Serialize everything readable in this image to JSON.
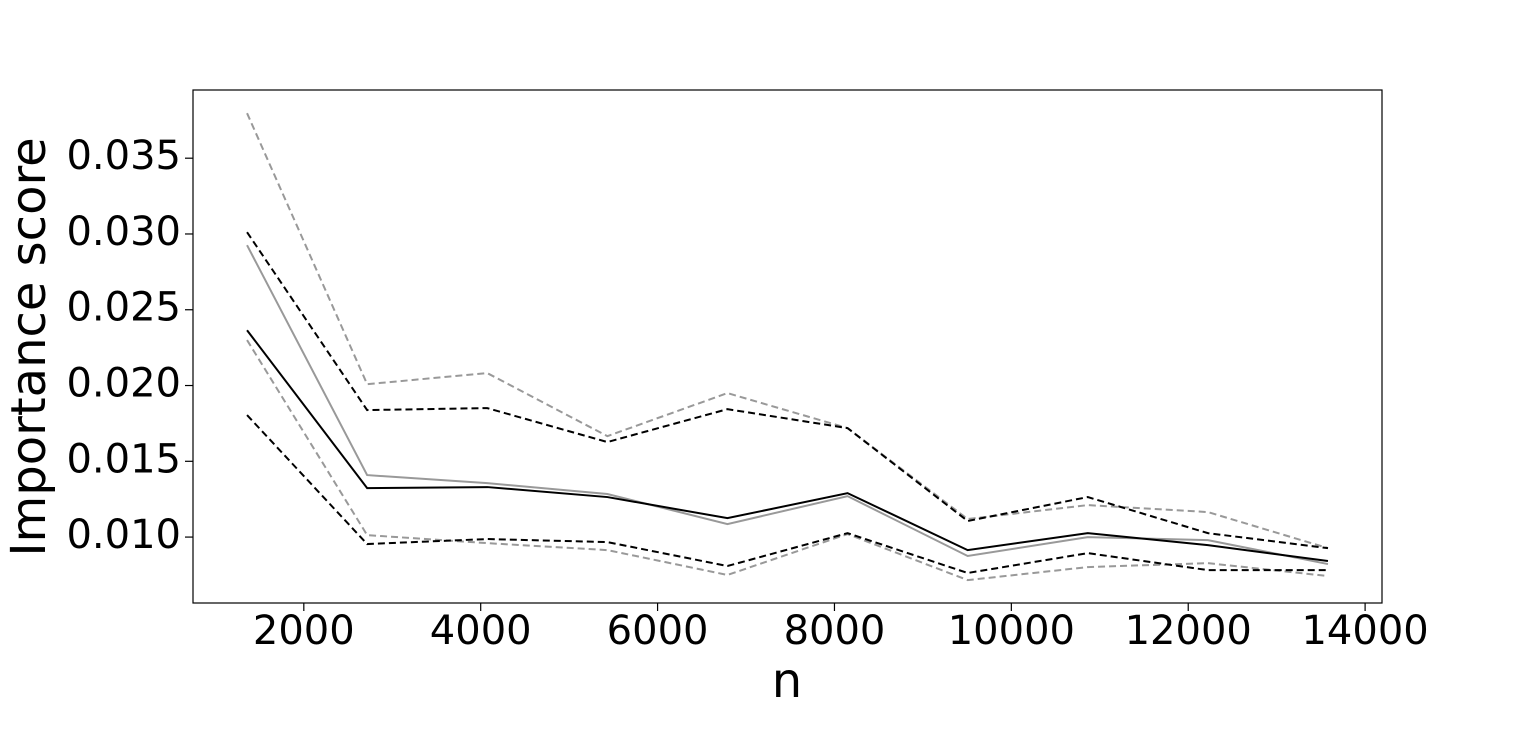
{
  "chart_data": {
    "type": "line",
    "xlabel": "n",
    "ylabel": "Importance score",
    "x": [
      1358,
      2716,
      4074,
      5432,
      6790,
      8148,
      9506,
      10864,
      12222,
      13580
    ],
    "series": [
      {
        "color": "#999999",
        "dash": "dashed",
        "values": [
          0.03797,
          0.02009,
          0.02082,
          0.01666,
          0.0195,
          0.01719,
          0.01119,
          0.01211,
          0.01165,
          0.00927
        ]
      },
      {
        "color": "#999999",
        "dash": "dashed",
        "values": [
          0.023,
          0.01013,
          0.0096,
          0.00914,
          0.0075,
          0.0102,
          0.00716,
          0.00802,
          0.00828,
          0.00743
        ]
      },
      {
        "color": "#999999",
        "dash": "solid",
        "values": [
          0.02926,
          0.01409,
          0.01356,
          0.01284,
          0.01086,
          0.0127,
          0.00875,
          0.01,
          0.0098,
          0.00822
        ]
      },
      {
        "color": "#000000",
        "dash": "dashed",
        "values": [
          0.03012,
          0.01838,
          0.01851,
          0.01627,
          0.01844,
          0.01719,
          0.01106,
          0.01264,
          0.01026,
          0.00927
        ]
      },
      {
        "color": "#000000",
        "dash": "dashed",
        "values": [
          0.01805,
          0.00954,
          0.00987,
          0.00967,
          0.00809,
          0.01026,
          0.00763,
          0.00894,
          0.00782,
          0.00782
        ]
      },
      {
        "color": "#000000",
        "dash": "solid",
        "values": [
          0.02365,
          0.01323,
          0.0133,
          0.01264,
          0.01125,
          0.0129,
          0.00914,
          0.01026,
          0.00947,
          0.00842
        ]
      }
    ],
    "xlim": [
      747,
      14191
    ],
    "ylim": [
      0.00565,
      0.0395
    ],
    "xticks": [
      2000,
      4000,
      6000,
      8000,
      10000,
      12000,
      14000
    ],
    "yticks": [
      {
        "value": 0.01,
        "label": "0.010"
      },
      0.015,
      {
        "value": 0.02,
        "label": "0.020"
      },
      0.025,
      {
        "value": 0.03,
        "label": "0.030"
      },
      0.035
    ],
    "grid": false
  }
}
